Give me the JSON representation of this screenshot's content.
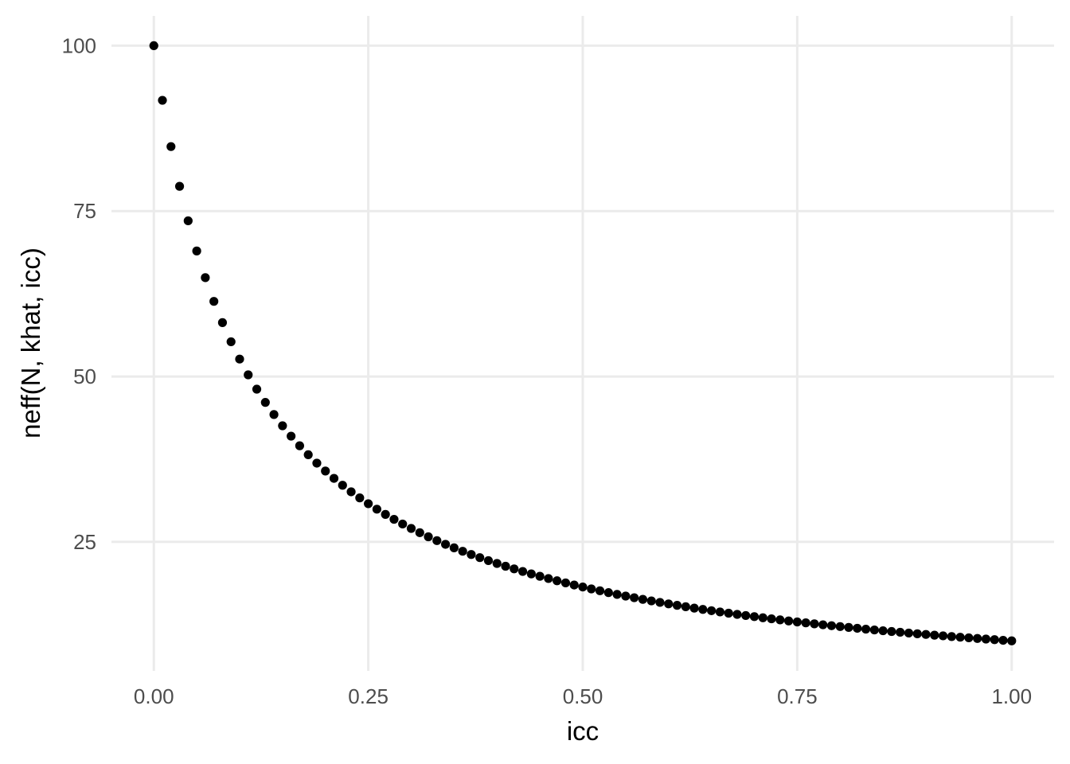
{
  "chart_data": {
    "type": "scatter",
    "title": "",
    "xlabel": "icc",
    "ylabel": "neff(N, khat, icc)",
    "xlim": [
      -0.0494,
      1.0494
    ],
    "ylim": [
      5.5,
      104.5
    ],
    "x_ticks": [
      0,
      0.25,
      0.5,
      0.75,
      1
    ],
    "x_tick_labels": [
      "0.00",
      "0.25",
      "0.50",
      "0.75",
      "1.00"
    ],
    "y_ticks": [
      25,
      50,
      75,
      100
    ],
    "y_tick_labels": [
      "25",
      "50",
      "75",
      "100"
    ],
    "grid": true,
    "legend": "none",
    "point_color": "#000000",
    "series": [
      {
        "x": [
          0,
          0.01,
          0.02,
          0.03,
          0.04,
          0.05,
          0.06,
          0.07,
          0.08,
          0.09,
          0.1,
          0.11,
          0.12,
          0.13,
          0.14,
          0.15,
          0.16,
          0.17,
          0.18,
          0.19,
          0.2,
          0.21,
          0.22,
          0.23,
          0.24,
          0.25,
          0.26,
          0.27,
          0.28,
          0.29,
          0.3,
          0.31,
          0.32,
          0.33,
          0.34,
          0.35,
          0.36,
          0.37,
          0.38,
          0.39,
          0.4,
          0.41,
          0.42,
          0.43,
          0.44,
          0.45,
          0.46,
          0.47,
          0.48,
          0.49,
          0.5,
          0.51,
          0.52,
          0.53,
          0.54,
          0.55,
          0.56,
          0.57,
          0.58,
          0.59,
          0.6,
          0.61,
          0.62,
          0.63,
          0.64,
          0.65,
          0.66,
          0.67,
          0.68,
          0.69,
          0.7,
          0.71,
          0.72,
          0.73,
          0.74,
          0.75,
          0.76,
          0.77,
          0.78,
          0.79,
          0.8,
          0.81,
          0.82,
          0.83,
          0.84,
          0.85,
          0.86,
          0.87,
          0.88,
          0.89,
          0.9,
          0.91,
          0.92,
          0.93,
          0.94,
          0.95,
          0.96,
          0.97,
          0.98,
          0.99,
          1
        ],
        "y": [
          100,
          91.74,
          84.75,
          78.74,
          73.53,
          68.97,
          64.94,
          61.35,
          58.14,
          55.25,
          52.63,
          50.25,
          48.08,
          46.08,
          44.25,
          42.55,
          40.98,
          39.53,
          38.17,
          36.9,
          35.71,
          34.6,
          33.56,
          32.57,
          31.65,
          30.77,
          29.94,
          29.15,
          28.41,
          27.7,
          27.03,
          26.39,
          25.77,
          25.19,
          24.63,
          24.1,
          23.58,
          23.09,
          22.62,
          22.17,
          21.74,
          21.32,
          20.92,
          20.53,
          20.16,
          19.8,
          19.46,
          19.12,
          18.8,
          18.48,
          18.18,
          17.89,
          17.61,
          17.33,
          17.06,
          16.81,
          16.56,
          16.31,
          16.08,
          15.85,
          15.63,
          15.41,
          15.2,
          14.99,
          14.79,
          14.6,
          14.41,
          14.22,
          14.04,
          13.87,
          13.7,
          13.53,
          13.37,
          13.21,
          13.05,
          12.9,
          12.76,
          12.61,
          12.47,
          12.33,
          12.2,
          12.07,
          11.94,
          11.81,
          11.69,
          11.57,
          11.45,
          11.34,
          11.22,
          11.11,
          11.01,
          10.9,
          10.8,
          10.69,
          10.59,
          10.5,
          10.4,
          10.31,
          10.22,
          10.12,
          10.04
        ]
      }
    ]
  }
}
